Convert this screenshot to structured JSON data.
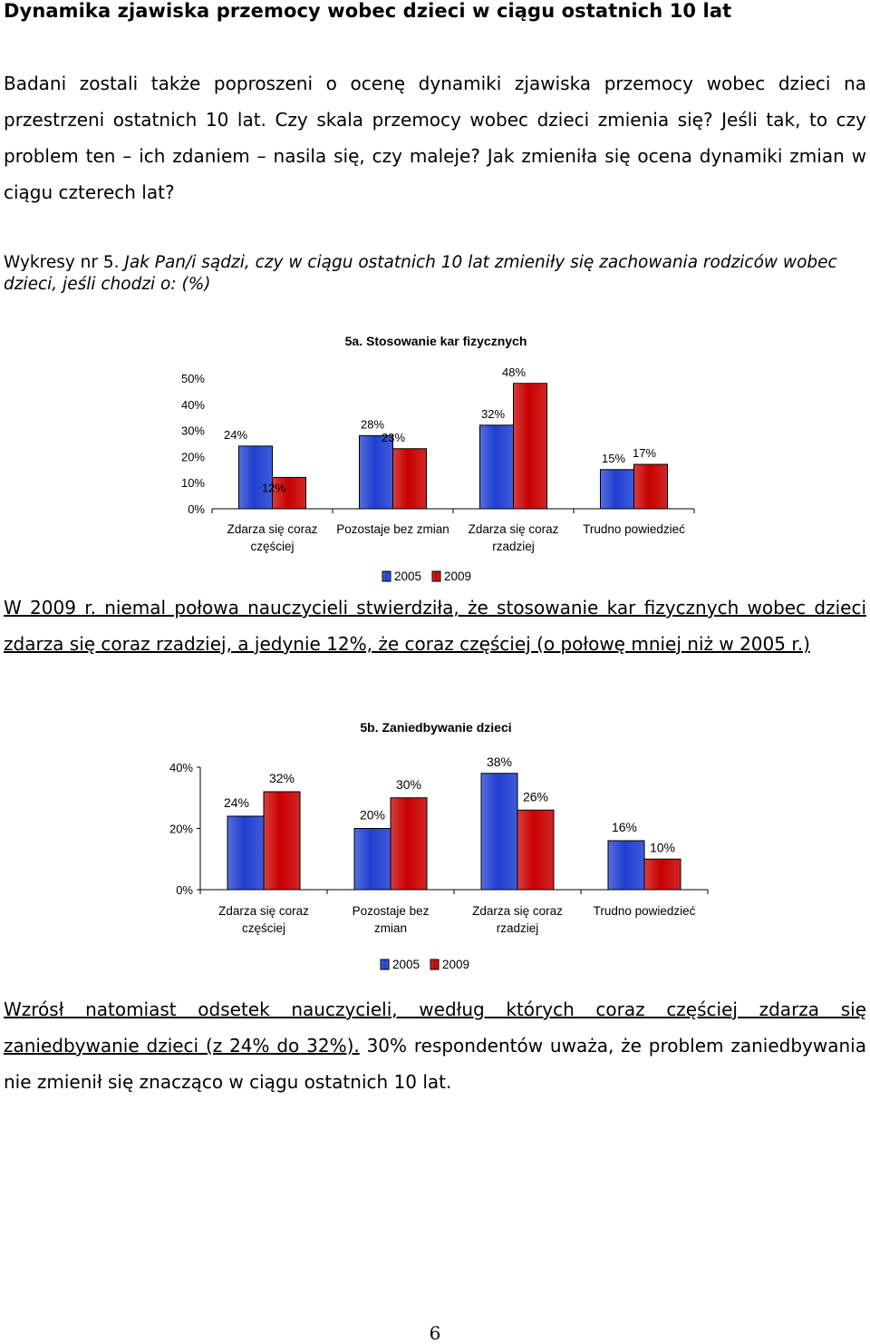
{
  "heading": "Dynamika zjawiska przemocy wobec dzieci w ciągu ostatnich 10 lat",
  "intro": "Badani zostali także poproszeni o ocenę dynamiki zjawiska przemocy wobec dzieci na przestrzeni ostatnich 10 lat. Czy skala przemocy wobec dzieci zmienia się? Jeśli tak, to czy problem ten – ich zdaniem – nasila się, czy maleje? Jak zmieniła się ocena dynamiki zmian w ciągu czterech lat?",
  "caption": {
    "prefix": "Wykresy nr 5. ",
    "text": "Jak Pan/i sądzi, czy w ciągu ostatnich 10 lat zmieniły się zachowania rodziców wobec dzieci, jeśli chodzi o: (%)"
  },
  "para_5a": {
    "underlined": "W 2009 r. niemal połowa nauczycieli stwierdziła, że stosowanie kar fizycznych wobec dzieci zdarza się coraz rzadziej, a jedynie 12%, że coraz częściej (o połowę mniej niż w 2005 r.)"
  },
  "para_5b": {
    "underlined": "Wzrósł natomiast odsetek nauczycieli, według których coraz częściej zdarza się zaniedbywanie dzieci (z 24% do 32%).",
    "rest": " 30% respondentów uważa, że problem zaniedbywania nie zmienił się znacząco w ciągu ostatnich 10 lat."
  },
  "page_number": "6",
  "colors": {
    "series_2005": "#1f3fd1",
    "series_2009": "#c80000"
  },
  "chart_data": [
    {
      "type": "bar",
      "title": "5a. Stosowanie kar fizycznych",
      "categories": [
        [
          "Zdarza się coraz",
          "częściej"
        ],
        [
          "Pozostaje bez zmian"
        ],
        [
          "Zdarza się coraz",
          "rzadziej"
        ],
        [
          "Trudno powiedzieć"
        ]
      ],
      "series": [
        {
          "name": "2005",
          "values": [
            24,
            28,
            32,
            15
          ],
          "labels": [
            "24%",
            "28%",
            "32%",
            "15%"
          ]
        },
        {
          "name": "2009",
          "values": [
            12,
            23,
            48,
            17
          ],
          "labels": [
            "12%",
            "23%",
            "48%",
            "17%"
          ]
        }
      ],
      "yticks": [
        "0%",
        "10%",
        "20%",
        "30%",
        "40%",
        "50%"
      ],
      "ylim": [
        0,
        50
      ],
      "legend": "bottom"
    },
    {
      "type": "bar",
      "title": "5b. Zaniedbywanie dzieci",
      "categories": [
        [
          "Zdarza się coraz",
          "częściej"
        ],
        [
          "Pozostaje bez",
          "zmian"
        ],
        [
          "Zdarza się coraz",
          "rzadziej"
        ],
        [
          "Trudno powiedzieć"
        ]
      ],
      "series": [
        {
          "name": "2005",
          "values": [
            24,
            20,
            38,
            16
          ],
          "labels": [
            "24%",
            "20%",
            "38%",
            "16%"
          ]
        },
        {
          "name": "2009",
          "values": [
            32,
            30,
            26,
            10
          ],
          "labels": [
            "32%",
            "30%",
            "26%",
            "10%"
          ]
        }
      ],
      "yticks": [
        "0%",
        "20%",
        "40%"
      ],
      "ylim": [
        0,
        40
      ],
      "legend": "bottom"
    }
  ]
}
